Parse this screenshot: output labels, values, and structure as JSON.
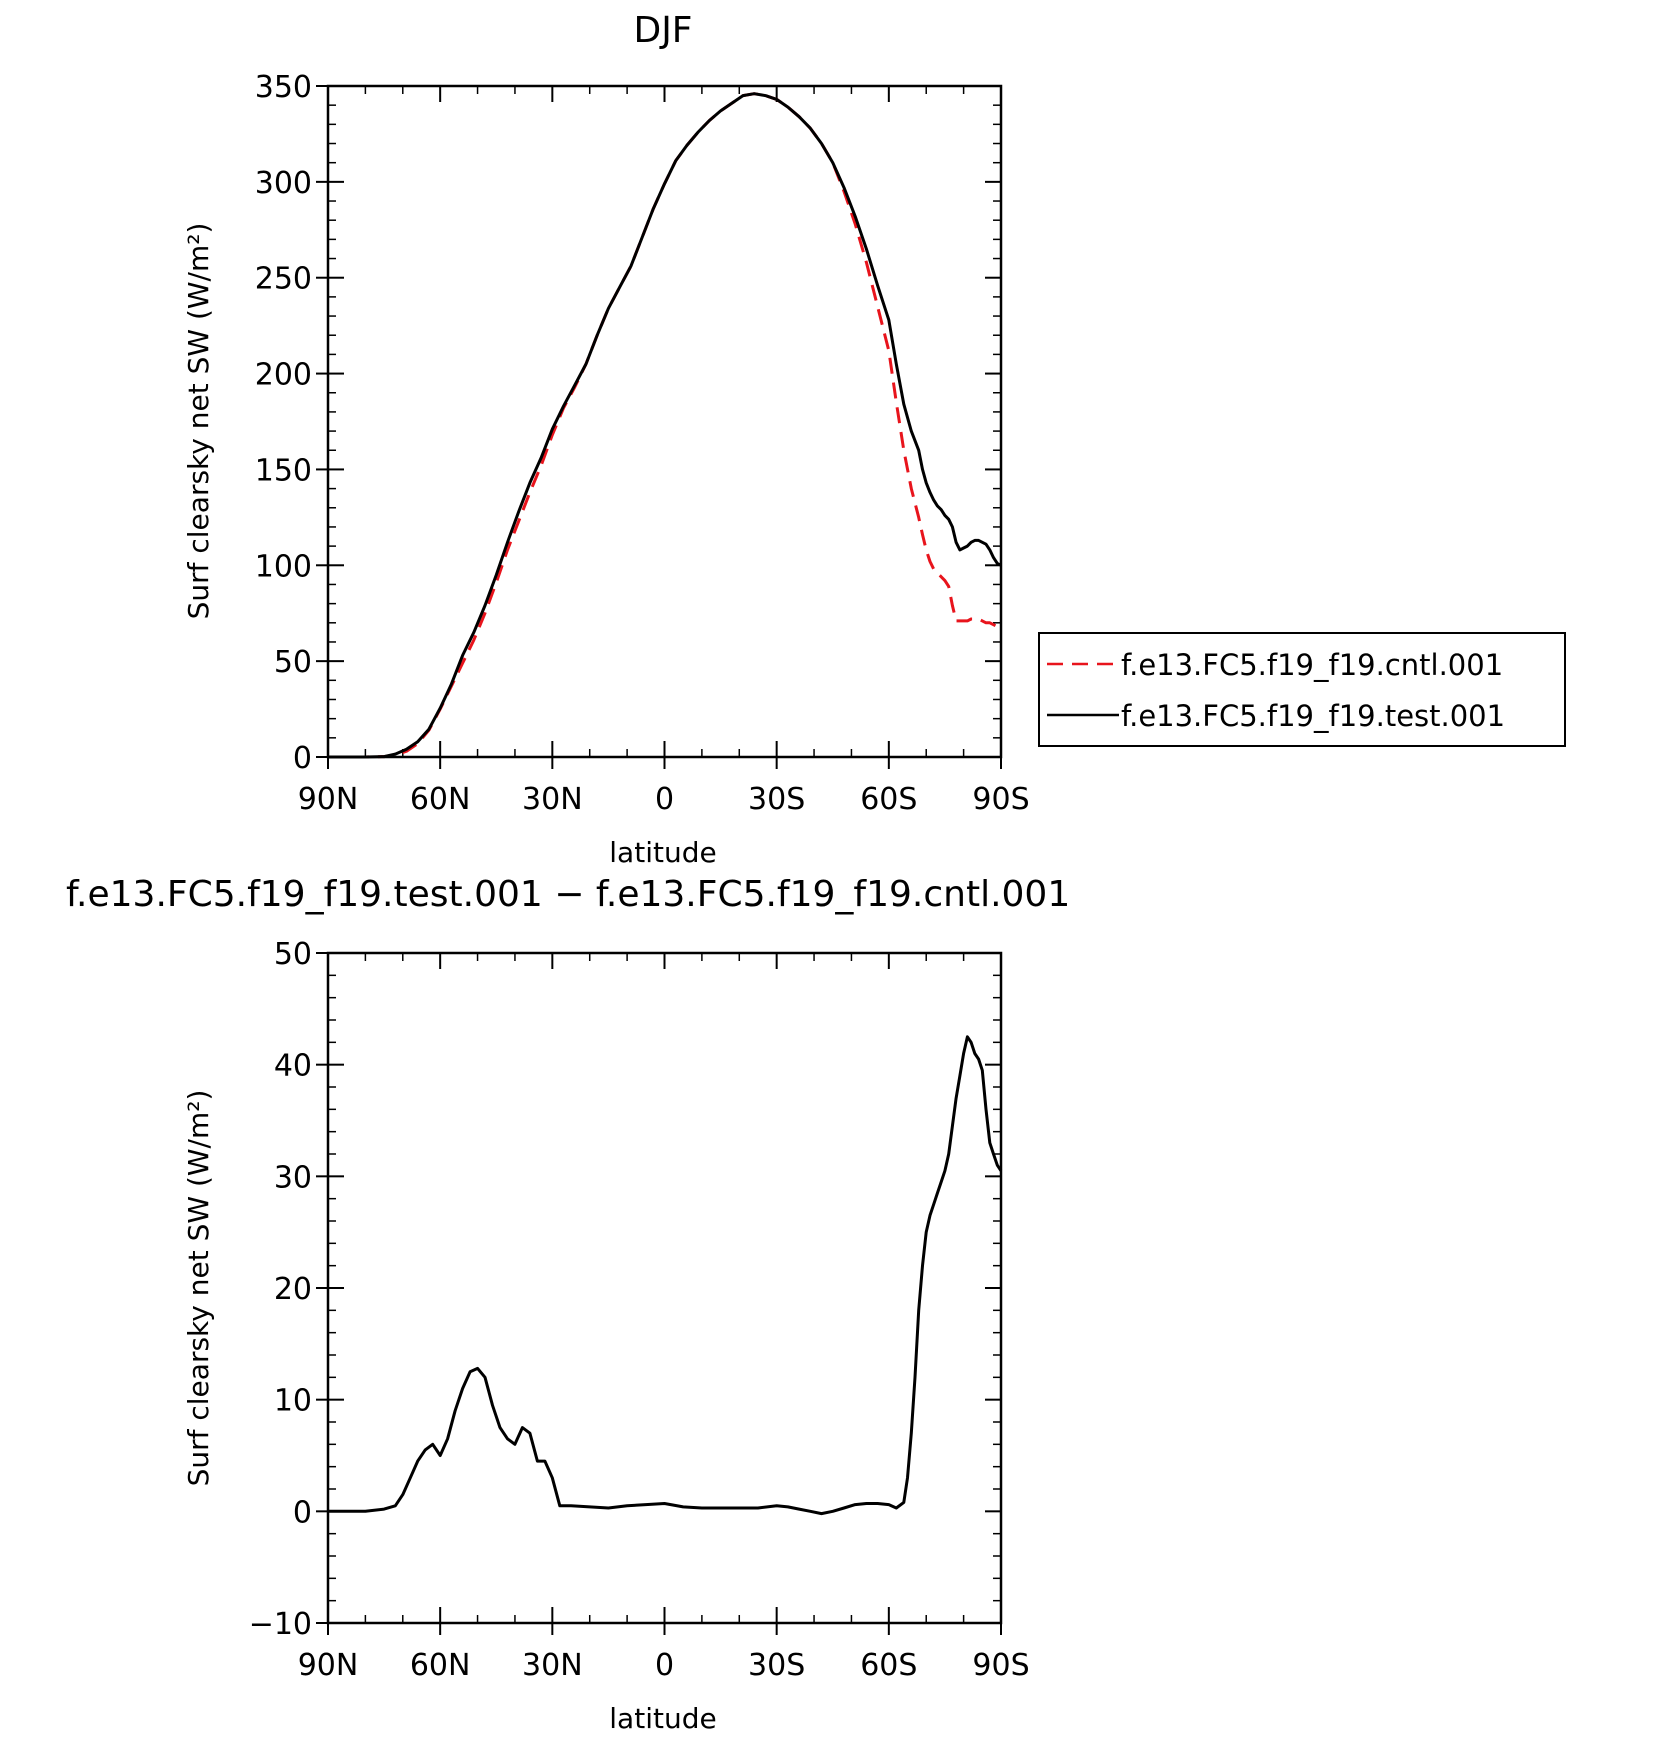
{
  "chart_data": [
    {
      "type": "line",
      "title": "DJF",
      "xlabel": "latitude",
      "ylabel": "Surf clearsky net SW (W/m²)",
      "xlim": [
        90,
        -90
      ],
      "ylim": [
        0,
        350
      ],
      "xticks": [
        90,
        60,
        30,
        0,
        -30,
        -60,
        -90
      ],
      "xtick_labels": [
        "90N",
        "60N",
        "30N",
        "0",
        "30S",
        "60S",
        "90S"
      ],
      "yticks": [
        0,
        50,
        100,
        150,
        200,
        250,
        300,
        350
      ],
      "ytick_labels": [
        "0",
        "50",
        "100",
        "150",
        "200",
        "250",
        "300",
        "350"
      ],
      "legend_position": "right",
      "series": [
        {
          "name": "f.e13.FC5.f19_f19.cntl.001",
          "color": "#e8141c",
          "dash": "dashed",
          "x": [
            90,
            80,
            75,
            72,
            69,
            66,
            63,
            60,
            57,
            54,
            51,
            48,
            45,
            42,
            39,
            36,
            33,
            30,
            27,
            24,
            21,
            18,
            15,
            12,
            9,
            6,
            3,
            0,
            -3,
            -6,
            -9,
            -12,
            -15,
            -18,
            -21,
            -24,
            -27,
            -30,
            -33,
            -36,
            -39,
            -42,
            -45,
            -48,
            -51,
            -54,
            -57,
            -60,
            -62,
            -64,
            -66,
            -68,
            -69,
            -70,
            -71,
            -72,
            -73,
            -74,
            -75,
            -76,
            -77,
            -78,
            -79,
            -80,
            -81,
            -82,
            -83,
            -84,
            -85,
            -86,
            -87,
            -88,
            -89,
            -90
          ],
          "y": [
            0,
            0,
            0.2,
            1,
            3,
            7,
            14,
            25,
            37,
            49,
            61,
            75,
            91,
            108,
            123,
            138,
            152,
            168,
            182,
            193,
            205,
            220,
            234,
            245,
            256,
            271,
            286,
            299,
            311,
            319,
            326,
            332,
            337,
            341,
            345,
            346,
            345,
            343,
            339,
            334,
            328,
            320,
            310,
            295,
            278,
            258,
            235,
            212,
            185,
            160,
            140,
            125,
            116,
            108,
            102,
            98,
            96,
            94,
            92,
            89,
            79,
            71,
            71,
            71,
            71,
            72,
            72,
            72,
            71,
            70,
            70,
            69,
            68,
            68
          ]
        },
        {
          "name": "f.e13.FC5.f19_f19.test.001",
          "color": "#000000",
          "dash": "solid",
          "x": [
            90,
            80,
            75,
            72,
            69,
            66,
            63,
            60,
            57,
            54,
            51,
            48,
            45,
            42,
            39,
            36,
            33,
            30,
            27,
            24,
            21,
            18,
            15,
            12,
            9,
            6,
            3,
            0,
            -3,
            -6,
            -9,
            -12,
            -15,
            -18,
            -21,
            -24,
            -27,
            -30,
            -33,
            -36,
            -39,
            -42,
            -45,
            -48,
            -51,
            -54,
            -57,
            -60,
            -62,
            -64,
            -66,
            -68,
            -69,
            -70,
            -71,
            -72,
            -73,
            -74,
            -75,
            -76,
            -77,
            -78,
            -79,
            -80,
            -81,
            -82,
            -83,
            -84,
            -85,
            -86,
            -87,
            -88,
            -89,
            -90
          ],
          "y": [
            0,
            0,
            0.2,
            1.5,
            4,
            8,
            14.5,
            25.5,
            38,
            53,
            65,
            79,
            95,
            112,
            128,
            143,
            156,
            171,
            183,
            194,
            205,
            220,
            234,
            245,
            256,
            271,
            286,
            299,
            311,
            319,
            326,
            332,
            337,
            341,
            345,
            346,
            345,
            343,
            339,
            334,
            328,
            320,
            310,
            297,
            282,
            265,
            246,
            228,
            205,
            184,
            170,
            160,
            150,
            143,
            138,
            134,
            131,
            129,
            126,
            124,
            120,
            112,
            108,
            109,
            110,
            112,
            113,
            113,
            112,
            111,
            108,
            104,
            101,
            100
          ]
        }
      ]
    },
    {
      "type": "line",
      "title": "f.e13.FC5.f19_f19.test.001 − f.e13.FC5.f19_f19.cntl.001",
      "xlabel": "latitude",
      "ylabel": "Surf clearsky net SW (W/m²)",
      "xlim": [
        90,
        -90
      ],
      "ylim": [
        -10,
        50
      ],
      "xticks": [
        90,
        60,
        30,
        0,
        -30,
        -60,
        -90
      ],
      "xtick_labels": [
        "90N",
        "60N",
        "30N",
        "0",
        "30S",
        "60S",
        "90S"
      ],
      "yticks": [
        -10,
        0,
        10,
        20,
        30,
        40,
        50
      ],
      "ytick_labels": [
        "−10",
        "0",
        "10",
        "20",
        "30",
        "40",
        "50"
      ],
      "series": [
        {
          "color": "#000000",
          "dash": "solid",
          "x": [
            90,
            80,
            75,
            72,
            70,
            68,
            66,
            64,
            62,
            60,
            58,
            56,
            54,
            52,
            50,
            48,
            46,
            44,
            42,
            40,
            38,
            36,
            34,
            32,
            30,
            28,
            25,
            20,
            15,
            10,
            5,
            0,
            -5,
            -10,
            -15,
            -20,
            -25,
            -30,
            -33,
            -36,
            -39,
            -42,
            -45,
            -48,
            -51,
            -54,
            -57,
            -60,
            -62,
            -64,
            -65,
            -66,
            -67,
            -68,
            -69,
            -70,
            -71,
            -72,
            -73,
            -74,
            -75,
            -76,
            -77,
            -78,
            -79,
            -80,
            -81,
            -82,
            -83,
            -84,
            -85,
            -86,
            -87,
            -88,
            -89,
            -90
          ],
          "y": [
            0,
            0,
            0.2,
            0.5,
            1.5,
            3,
            4.5,
            5.5,
            6,
            5,
            6.5,
            9,
            11,
            12.5,
            12.8,
            12,
            9.5,
            7.5,
            6.5,
            6,
            7.5,
            7,
            4.5,
            4.5,
            3,
            0.5,
            0.5,
            0.4,
            0.3,
            0.5,
            0.6,
            0.7,
            0.4,
            0.3,
            0.3,
            0.3,
            0.3,
            0.5,
            0.4,
            0.2,
            0,
            -0.2,
            0,
            0.3,
            0.6,
            0.7,
            0.7,
            0.6,
            0.3,
            0.8,
            3,
            7,
            12,
            18,
            22,
            25,
            26.5,
            27.5,
            28.5,
            29.5,
            30.5,
            32,
            34.5,
            37,
            39,
            41,
            42.5,
            42,
            41,
            40.5,
            39.5,
            36,
            33,
            32,
            31,
            30.5
          ]
        }
      ]
    }
  ]
}
